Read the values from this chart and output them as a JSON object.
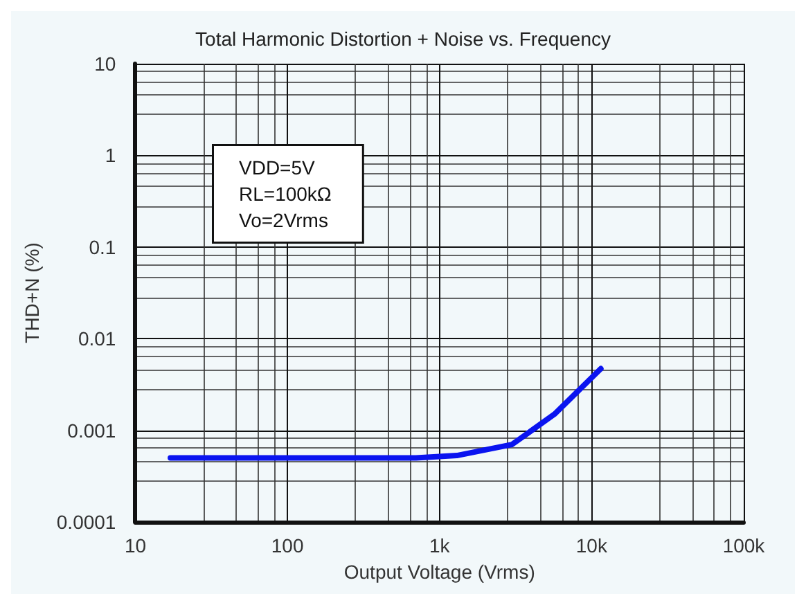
{
  "chart_data": {
    "type": "line",
    "title": "Total Harmonic Distortion + Noise vs. Frequency",
    "xlabel": "Output Voltage (Vrms)",
    "ylabel": "THD+N (%)",
    "log": "xy",
    "grid": true,
    "marker": "none",
    "line_style": "solid",
    "x": [
      17,
      300,
      700,
      1300,
      3000,
      5700,
      11500
    ],
    "series": [
      {
        "color": "#0a14f0",
        "values": [
          0.0005,
          0.0005,
          0.0005,
          0.00053,
          0.0007,
          0.0015,
          0.0047
        ]
      }
    ],
    "xlim": [
      10,
      100000
    ],
    "xticks": [
      10,
      100,
      {
        "value": 1000,
        "label": "1k"
      },
      {
        "value": 10000,
        "label": "10k"
      },
      {
        "value": 100000,
        "label": "100k"
      }
    ],
    "ylim": [
      0.0001,
      10
    ],
    "yticks": [
      0.0001,
      0.001,
      0.01,
      0.1,
      1,
      10
    ],
    "annotations": [
      "VDD=5V\nRL=100kΩ\nVo=2Vrms"
    ]
  }
}
